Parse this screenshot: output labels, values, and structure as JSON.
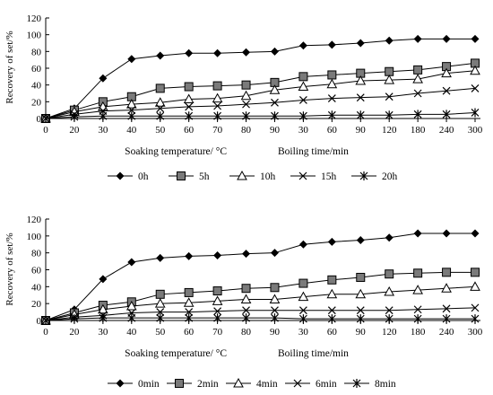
{
  "chart_data": [
    {
      "type": "line",
      "ylabel": "Recovery of set/%",
      "xlabel_left": "Soaking temperature/ °C",
      "xlabel_right": "Boiling time/min",
      "categories": [
        "0",
        "20",
        "30",
        "40",
        "50",
        "60",
        "70",
        "80",
        "90",
        "30",
        "60",
        "90",
        "120",
        "180",
        "240",
        "300"
      ],
      "ylim": [
        0,
        120
      ],
      "yticks": [
        "0",
        "20",
        "40",
        "60",
        "80",
        "100",
        "120"
      ],
      "legend_position": "bottom",
      "series": [
        {
          "name": "0h",
          "marker": "diamond",
          "values": [
            0,
            12,
            48,
            71,
            75,
            78,
            78,
            79,
            80,
            87,
            88,
            90,
            93,
            95,
            95,
            95
          ]
        },
        {
          "name": "5h",
          "marker": "square",
          "values": [
            0,
            10,
            20,
            26,
            36,
            38,
            39,
            40,
            43,
            50,
            52,
            54,
            56,
            58,
            62,
            66
          ]
        },
        {
          "name": "10h",
          "marker": "triangle",
          "values": [
            0,
            8,
            14,
            17,
            19,
            23,
            24,
            27,
            34,
            38,
            41,
            45,
            46,
            47,
            54,
            57
          ]
        },
        {
          "name": "15h",
          "marker": "x",
          "values": [
            0,
            5,
            9,
            10,
            12,
            14,
            15,
            17,
            19,
            22,
            24,
            25,
            26,
            30,
            33,
            36
          ]
        },
        {
          "name": "20h",
          "marker": "asterisk",
          "values": [
            0,
            2,
            3,
            3,
            3,
            3,
            3,
            3,
            3,
            3,
            4,
            4,
            4,
            5,
            5,
            7
          ]
        }
      ]
    },
    {
      "type": "line",
      "ylabel": "Recovery of set/%",
      "xlabel_left": "Soaking temperature/ °C",
      "xlabel_right": "Boiling time/min",
      "categories": [
        "0",
        "20",
        "30",
        "40",
        "50",
        "60",
        "70",
        "80",
        "90",
        "30",
        "60",
        "90",
        "120",
        "180",
        "240",
        "300"
      ],
      "ylim": [
        0,
        120
      ],
      "yticks": [
        "0",
        "20",
        "40",
        "60",
        "80",
        "100",
        "120"
      ],
      "legend_position": "bottom",
      "series": [
        {
          "name": "0min",
          "marker": "diamond",
          "values": [
            0,
            13,
            49,
            69,
            74,
            76,
            77,
            79,
            80,
            90,
            93,
            95,
            98,
            103,
            103,
            103
          ]
        },
        {
          "name": "2min",
          "marker": "square",
          "values": [
            0,
            9,
            18,
            22,
            31,
            33,
            35,
            38,
            39,
            44,
            48,
            51,
            55,
            56,
            57,
            57
          ]
        },
        {
          "name": "4min",
          "marker": "triangle",
          "values": [
            0,
            7,
            13,
            17,
            20,
            21,
            23,
            25,
            25,
            28,
            31,
            31,
            34,
            36,
            38,
            40
          ]
        },
        {
          "name": "6min",
          "marker": "x",
          "values": [
            0,
            4,
            6,
            9,
            10,
            10,
            11,
            12,
            12,
            12,
            12,
            12,
            12,
            13,
            14,
            15
          ]
        },
        {
          "name": "8min",
          "marker": "asterisk",
          "values": [
            0,
            2,
            3,
            3,
            3,
            3,
            3,
            3,
            3,
            2,
            2,
            2,
            2,
            2,
            2,
            2
          ]
        }
      ]
    }
  ]
}
